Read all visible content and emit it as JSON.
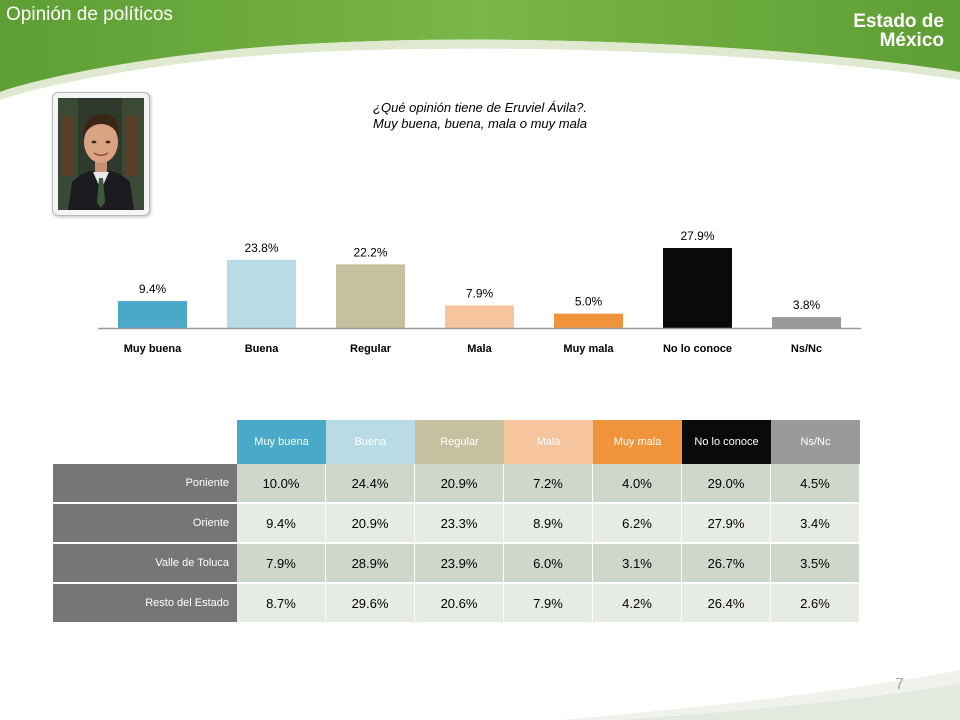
{
  "header": {
    "title": "Opinión de políticos",
    "brand_line1": "Estado de",
    "brand_line2": "México"
  },
  "question": {
    "line1": "¿Qué opinión tiene de Eruviel Ávila?.",
    "line2": "Muy buena, buena, mala o muy mala"
  },
  "colors": {
    "muy_buena": "#4aa9c9",
    "buena": "#b8dbe6",
    "regular": "#c6c09e",
    "mala": "#f6c59d",
    "muy_mala": "#f0943c",
    "no_lo_conoce": "#0a0a0a",
    "ns_nc": "#9a9a9a",
    "header_green": "#6aa83f",
    "row_label_bg": "#767676"
  },
  "chart_data": {
    "type": "bar",
    "categories": [
      "Muy buena",
      "Buena",
      "Regular",
      "Mala",
      "Muy mala",
      "No lo conoce",
      "Ns/Nc"
    ],
    "values": [
      9.4,
      23.8,
      22.2,
      7.9,
      5.0,
      27.9,
      3.8
    ],
    "value_labels": [
      "9.4%",
      "23.8%",
      "22.2%",
      "7.9%",
      "5.0%",
      "27.9%",
      "3.8%"
    ],
    "title": "",
    "xlabel": "",
    "ylabel": "",
    "ylim": [
      0,
      30
    ]
  },
  "table": {
    "columns": [
      "Muy buena",
      "Buena",
      "Regular",
      "Mala",
      "Muy mala",
      "No lo conoce",
      "Ns/Nc"
    ],
    "rows": [
      {
        "label": "Poniente",
        "values": [
          "10.0%",
          "24.4%",
          "20.9%",
          "7.2%",
          "4.0%",
          "29.0%",
          "4.5%"
        ]
      },
      {
        "label": "Oriente",
        "values": [
          "9.4%",
          "20.9%",
          "23.3%",
          "8.9%",
          "6.2%",
          "27.9%",
          "3.4%"
        ]
      },
      {
        "label": "Valle de Toluca",
        "values": [
          "7.9%",
          "28.9%",
          "23.9%",
          "6.0%",
          "3.1%",
          "26.7%",
          "3.5%"
        ]
      },
      {
        "label": "Resto del Estado",
        "values": [
          "8.7%",
          "29.6%",
          "20.6%",
          "7.9%",
          "4.2%",
          "26.4%",
          "2.6%"
        ]
      }
    ]
  },
  "footer": {
    "page_number": "7"
  }
}
